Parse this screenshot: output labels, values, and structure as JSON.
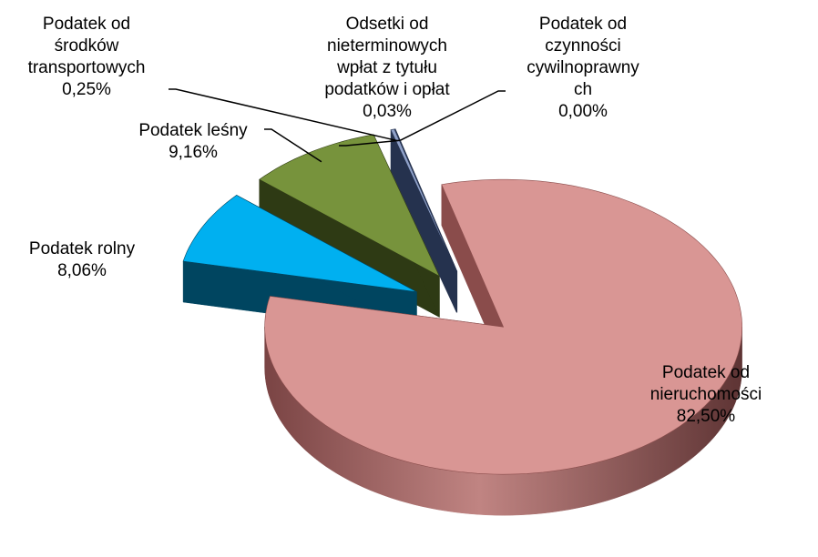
{
  "chart_data": {
    "type": "pie",
    "categories": [
      "Podatek od nieruchomości",
      "Podatek rolny",
      "Podatek leśny",
      "Podatek od środków transportowych",
      "Odsetki od nieterminowych wpłat z tytułu podatków i opłat",
      "Podatek od czynności cywilnoprawnych"
    ],
    "values": [
      82.5,
      8.06,
      9.16,
      0.25,
      0.03,
      0.0
    ],
    "value_labels": [
      "82,50%",
      "8,06%",
      "9,16%",
      "0,25%",
      "0,03%",
      "0,00%"
    ],
    "colors": [
      "#d99694",
      "#00b0f0",
      "#77933c",
      "#8ea0c8",
      "#8ea0c8",
      "#8ea0c8"
    ],
    "side_colors": [
      "#8a4c4b",
      "#004560",
      "#2e3a14",
      "#25324e",
      "#25324e",
      "#25324e"
    ]
  }
}
